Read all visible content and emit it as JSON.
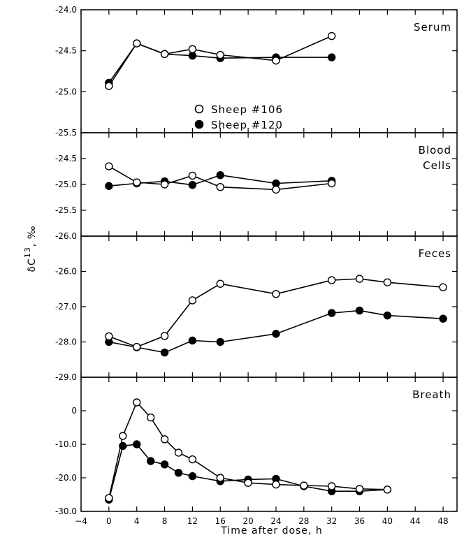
{
  "chart_data": [
    {
      "type": "line",
      "title": "Serum",
      "ylim": [
        -25.5,
        -24.0
      ],
      "yticks": [
        -24.0,
        -24.5,
        -25.0,
        -25.5
      ],
      "ytick_labels": [
        "-24.0",
        "-24.5",
        "-25.0",
        "-25.5"
      ],
      "series": [
        {
          "name": "Sheep #106",
          "marker": "open",
          "x": [
            0,
            4,
            8,
            12,
            16,
            24,
            32
          ],
          "y": [
            -24.93,
            -24.41,
            -24.54,
            -24.48,
            -24.55,
            -24.62,
            -24.32
          ]
        },
        {
          "name": "Sheep #120",
          "marker": "filled",
          "x": [
            0,
            4,
            8,
            12,
            16,
            24,
            32
          ],
          "y": [
            -24.89,
            -24.41,
            -24.54,
            -24.56,
            -24.59,
            -24.58,
            -24.58
          ]
        }
      ]
    },
    {
      "type": "line",
      "title": "Blood\nCells",
      "ylim": [
        -26.0,
        -24.0
      ],
      "yticks": [
        -24.5,
        -25.0,
        -25.5,
        -26.0
      ],
      "ytick_labels": [
        "-24.5",
        "-25.0",
        "-25.5",
        "-26.0"
      ],
      "series": [
        {
          "name": "Sheep #106",
          "marker": "open",
          "x": [
            0,
            4,
            8,
            12,
            16,
            24,
            32
          ],
          "y": [
            -24.65,
            -24.96,
            -25.0,
            -24.83,
            -25.05,
            -25.1,
            -24.98
          ]
        },
        {
          "name": "Sheep #120",
          "marker": "filled",
          "x": [
            0,
            4,
            8,
            12,
            16,
            24,
            32
          ],
          "y": [
            -25.03,
            -24.98,
            -24.94,
            -25.01,
            -24.82,
            -24.98,
            -24.93
          ]
        }
      ]
    },
    {
      "type": "line",
      "title": "Feces",
      "ylim": [
        -29.0,
        -25.0
      ],
      "yticks": [
        -26.0,
        -27.0,
        -28.0,
        -29.0
      ],
      "ytick_labels": [
        "-26.0",
        "-27.0",
        "-28.0",
        "-29.0"
      ],
      "series": [
        {
          "name": "Sheep #106",
          "marker": "open",
          "x": [
            0,
            4,
            8,
            12,
            16,
            24,
            32,
            36,
            40,
            48
          ],
          "y": [
            -27.84,
            -28.14,
            -27.83,
            -26.82,
            -26.35,
            -26.64,
            -26.25,
            -26.21,
            -26.31,
            -26.45
          ]
        },
        {
          "name": "Sheep #120",
          "marker": "filled",
          "x": [
            0,
            4,
            8,
            12,
            16,
            24,
            32,
            36,
            40,
            48
          ],
          "y": [
            -28.0,
            -28.15,
            -28.3,
            -27.96,
            -28.0,
            -27.77,
            -27.18,
            -27.11,
            -27.25,
            -27.34
          ]
        }
      ]
    },
    {
      "type": "line",
      "title": "Breath",
      "ylim": [
        -30.0,
        10.0
      ],
      "yticks": [
        0,
        -10.0,
        -20.0,
        -30.0
      ],
      "ytick_labels": [
        "0",
        "-10.0",
        "-20.0",
        "-30.0"
      ],
      "series": [
        {
          "name": "Sheep #106",
          "marker": "open",
          "x": [
            0,
            2,
            4,
            6,
            8,
            10,
            12,
            16,
            20,
            24,
            28,
            32,
            36,
            40
          ],
          "y": [
            -26.0,
            -7.5,
            2.5,
            -2.0,
            -8.5,
            -12.5,
            -14.5,
            -20.0,
            -21.5,
            -22.0,
            -22.3,
            -22.5,
            -23.3,
            -23.5
          ]
        },
        {
          "name": "Sheep #120",
          "marker": "filled",
          "x": [
            0,
            2,
            4,
            6,
            8,
            10,
            12,
            16,
            20,
            24,
            28,
            32,
            36,
            40
          ],
          "y": [
            -26.5,
            -10.5,
            -10.0,
            -15.0,
            -16.0,
            -18.5,
            -19.5,
            -21.0,
            -20.5,
            -20.3,
            -22.5,
            -24.0,
            -24.0,
            -23.5
          ]
        }
      ]
    }
  ],
  "shared": {
    "xlabel": "Time after dose, h",
    "xlim": [
      -4,
      50
    ],
    "xticks": [
      -4,
      0,
      4,
      8,
      12,
      16,
      20,
      24,
      28,
      32,
      36,
      40,
      44,
      48
    ],
    "ylabel": "δC¹³ ‰",
    "ylabel_main": "δC",
    "ylabel_sup": "13",
    "ylabel_unit": "‰",
    "legend": {
      "location": "Serum panel, center",
      "entries": [
        {
          "label": "Sheep #106",
          "marker": "open"
        },
        {
          "label": "Sheep #120",
          "marker": "filled"
        }
      ]
    },
    "grid": false,
    "colors": {
      "line": "#000000",
      "open_fill": "#ffffff",
      "filled_fill": "#000000"
    }
  }
}
